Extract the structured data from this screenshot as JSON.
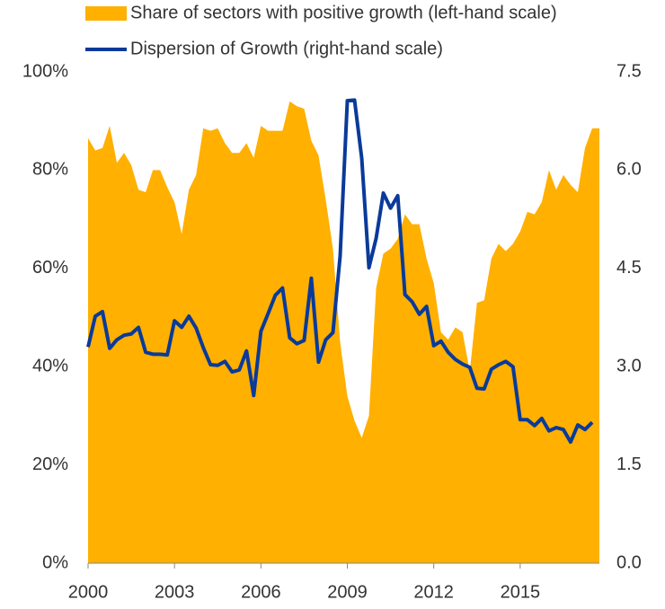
{
  "chart_data": {
    "type": "area",
    "x": [
      2000,
      2000.25,
      2000.5,
      2000.75,
      2001,
      2001.25,
      2001.5,
      2001.75,
      2002,
      2002.25,
      2002.5,
      2002.75,
      2003,
      2003.25,
      2003.5,
      2003.75,
      2004,
      2004.25,
      2004.5,
      2004.75,
      2005,
      2005.25,
      2005.5,
      2005.75,
      2006,
      2006.25,
      2006.5,
      2006.75,
      2007,
      2007.25,
      2007.5,
      2007.75,
      2008,
      2008.25,
      2008.5,
      2008.75,
      2009,
      2009.25,
      2009.5,
      2009.75,
      2010,
      2010.25,
      2010.5,
      2010.75,
      2011,
      2011.25,
      2011.5,
      2011.75,
      2012,
      2012.25,
      2012.5,
      2012.75,
      2013,
      2013.25,
      2013.5,
      2013.75,
      2014,
      2014.25,
      2014.5,
      2014.75,
      2015,
      2015.25,
      2015.5,
      2015.75,
      2016,
      2016.25,
      2016.5,
      2016.75,
      2017,
      2017.25,
      2017.5,
      2017.75
    ],
    "series": [
      {
        "name": "Share of sectors with positive growth (left-hand scale)",
        "type": "area",
        "axis": "y",
        "color": "#FFB000",
        "values": [
          86.5,
          84,
          84.5,
          89,
          81.5,
          83.5,
          81,
          76,
          75.5,
          80,
          80,
          76.5,
          73.5,
          67,
          76,
          79,
          88.5,
          88,
          88.5,
          85.5,
          83.5,
          83.5,
          85.5,
          82.5,
          89,
          88,
          88,
          88,
          94,
          93,
          92.5,
          86,
          83,
          74,
          64,
          45,
          34,
          29,
          25.5,
          30,
          56,
          63,
          64,
          66,
          71,
          69,
          69,
          62,
          57,
          47,
          45.5,
          48,
          47,
          39,
          53,
          53.5,
          62,
          65,
          63.5,
          65,
          67.5,
          71.5,
          71,
          73.5,
          80,
          76,
          79,
          77,
          75.5,
          84.5,
          88.5,
          88.5
        ]
      },
      {
        "name": "Dispersion of Growth (right-hand scale)",
        "type": "line",
        "axis": "y2",
        "color": "#0A3A9A",
        "values": [
          3.3,
          3.77,
          3.84,
          3.28,
          3.41,
          3.48,
          3.5,
          3.6,
          3.22,
          3.19,
          3.19,
          3.18,
          3.7,
          3.6,
          3.77,
          3.59,
          3.29,
          3.03,
          3.02,
          3.08,
          2.92,
          2.95,
          3.24,
          2.56,
          3.54,
          3.81,
          4.09,
          4.2,
          3.44,
          3.35,
          3.4,
          4.35,
          3.07,
          3.41,
          3.52,
          4.69,
          7.06,
          7.07,
          6.18,
          4.51,
          4.96,
          5.65,
          5.42,
          5.61,
          4.1,
          3.99,
          3.8,
          3.92,
          3.32,
          3.39,
          3.22,
          3.11,
          3.04,
          2.99,
          2.67,
          2.66,
          2.96,
          3.03,
          3.08,
          3.0,
          2.19,
          2.19,
          2.1,
          2.21,
          2.02,
          2.07,
          2.04,
          1.85,
          2.11,
          2.04,
          2.15,
          null
        ]
      }
    ],
    "xlim": [
      2000,
      2017.75
    ],
    "xticks": [
      2000,
      2003,
      2006,
      2009,
      2012,
      2015
    ],
    "ylim": [
      0,
      100
    ],
    "yticks": [
      {
        "value": 0,
        "label": "0%"
      },
      {
        "value": 20,
        "label": "20%"
      },
      {
        "value": 40,
        "label": "40%"
      },
      {
        "value": 60,
        "label": "60%"
      },
      {
        "value": 80,
        "label": "80%"
      },
      {
        "value": 100,
        "label": "100%"
      }
    ],
    "y2lim": [
      0,
      7.5
    ],
    "y2ticks": [
      {
        "value": 0,
        "label": "0.0"
      },
      1.5,
      {
        "value": 3,
        "label": "3.0"
      },
      4.5,
      {
        "value": 6,
        "label": "6.0"
      },
      7.5
    ],
    "legend": "top"
  }
}
